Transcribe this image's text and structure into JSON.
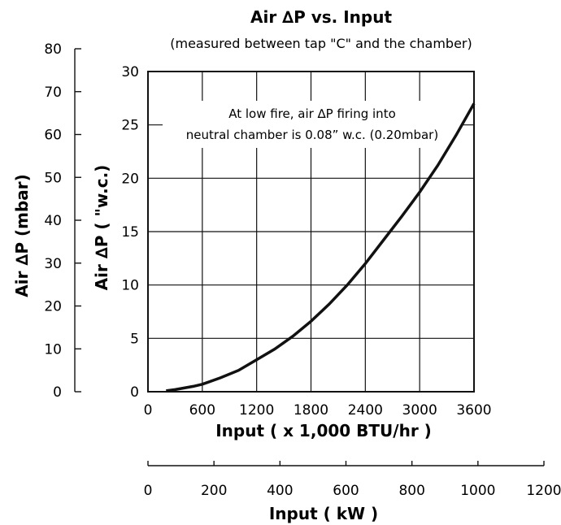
{
  "chart_data": {
    "type": "line",
    "title": "Air ∆P vs. Input",
    "subtitle": "(measured between tap \"C\" and the chamber)",
    "xlabel": "Input ( x 1,000 BTU/hr )",
    "xlabel_secondary": "Input ( kW )",
    "ylabel": "Air ∆P ( \"w.c.)",
    "ylabel_secondary": "Air ∆P (mbar)",
    "xlim": [
      0,
      3600
    ],
    "ylim": [
      0,
      30
    ],
    "xlim_secondary": [
      0,
      1200
    ],
    "ylim_secondary": [
      0,
      80
    ],
    "x_ticks": [
      "0",
      "600",
      "1200",
      "1800",
      "2400",
      "3000",
      "3600"
    ],
    "y_ticks": [
      "0",
      "5",
      "10",
      "15",
      "20",
      "25",
      "30"
    ],
    "x_ticks_secondary": [
      "0",
      "200",
      "400",
      "600",
      "800",
      "1000",
      "1200"
    ],
    "y_ticks_secondary": [
      "0",
      "10",
      "20",
      "30",
      "40",
      "50",
      "60",
      "70",
      "80"
    ],
    "grid": true,
    "annotation": [
      "At low fire, air ∆P firing into",
      "neutral chamber is 0.08” w.c. (0.20mbar)"
    ],
    "series": [
      {
        "x": [
          200,
          300,
          400,
          500,
          600,
          800,
          1000,
          1200,
          1400,
          1600,
          1800,
          2000,
          2200,
          2400,
          2600,
          2800,
          3000,
          3200,
          3400,
          3600
        ],
        "y": [
          0.08,
          0.2,
          0.35,
          0.5,
          0.7,
          1.3,
          2.0,
          3.0,
          4.0,
          5.2,
          6.6,
          8.2,
          10.0,
          12.0,
          14.2,
          16.4,
          18.7,
          21.2,
          24.0,
          27.0
        ]
      }
    ]
  }
}
